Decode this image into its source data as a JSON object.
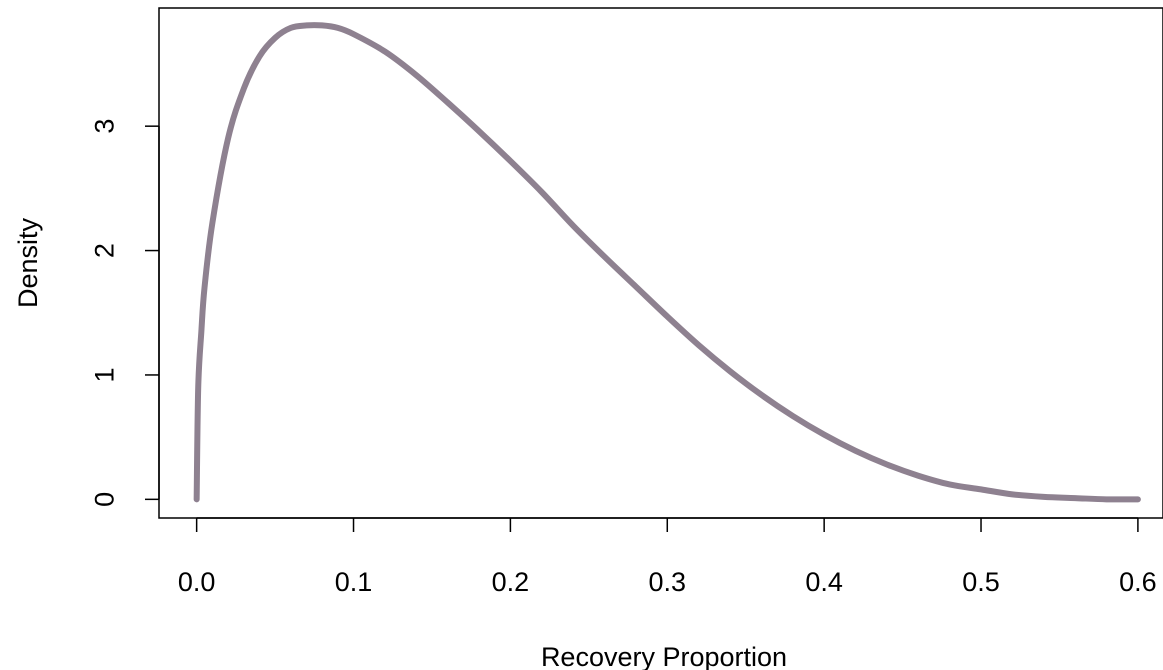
{
  "chart_data": {
    "type": "line",
    "title": "",
    "xlabel": "Recovery Proportion",
    "ylabel": "Density",
    "xlim": [
      -0.024,
      0.616
    ],
    "ylim": [
      -0.15,
      3.95
    ],
    "xticks": [
      0.0,
      0.1,
      0.2,
      0.3,
      0.4,
      0.5,
      0.6
    ],
    "xtick_labels": [
      "0.0",
      "0.1",
      "0.2",
      "0.3",
      "0.4",
      "0.5",
      "0.6"
    ],
    "yticks": [
      0,
      1,
      2,
      3
    ],
    "ytick_labels": [
      "0",
      "1",
      "2",
      "3"
    ],
    "grid": false,
    "line_color": "#8e8190",
    "series": [
      {
        "x": [
          0.0,
          0.001,
          0.003,
          0.005,
          0.01,
          0.02,
          0.03,
          0.04,
          0.05,
          0.06,
          0.07,
          0.08,
          0.09,
          0.1,
          0.12,
          0.14,
          0.16,
          0.18,
          0.2,
          0.22,
          0.24,
          0.26,
          0.28,
          0.3,
          0.32,
          0.34,
          0.36,
          0.38,
          0.4,
          0.42,
          0.44,
          0.46,
          0.48,
          0.5,
          0.52,
          0.54,
          0.56,
          0.58,
          0.6
        ],
        "y": [
          0.0,
          0.9,
          1.35,
          1.7,
          2.22,
          2.9,
          3.3,
          3.56,
          3.71,
          3.79,
          3.81,
          3.81,
          3.79,
          3.74,
          3.6,
          3.41,
          3.19,
          2.96,
          2.72,
          2.47,
          2.2,
          1.95,
          1.71,
          1.47,
          1.24,
          1.03,
          0.84,
          0.67,
          0.52,
          0.39,
          0.28,
          0.19,
          0.12,
          0.08,
          0.04,
          0.02,
          0.01,
          0.0,
          0.0
        ]
      }
    ]
  }
}
